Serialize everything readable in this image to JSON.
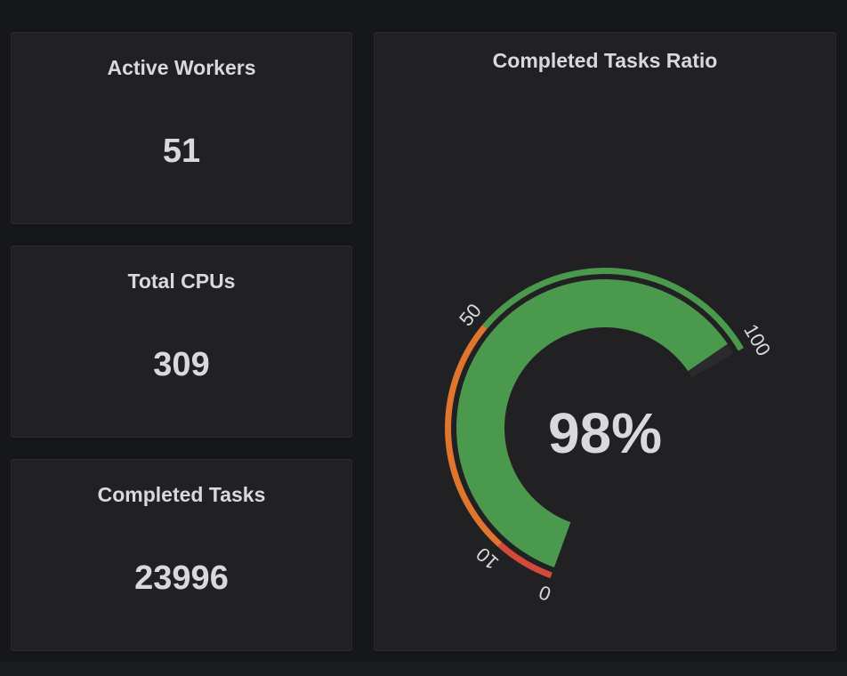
{
  "panels": {
    "active_workers": {
      "title": "Active Workers",
      "value": "51"
    },
    "total_cpus": {
      "title": "Total CPUs",
      "value": "309"
    },
    "completed_tasks": {
      "title": "Completed Tasks",
      "value": "23996"
    }
  },
  "gauge": {
    "title": "Completed Tasks Ratio",
    "value_label": "98%",
    "value": 98,
    "min": 0,
    "max": 100,
    "thresholds": [
      {
        "from": 0,
        "to": 10,
        "color": "#d44a3a"
      },
      {
        "from": 10,
        "to": 50,
        "color": "#e0752d"
      },
      {
        "from": 50,
        "to": 100,
        "color": "#4b994d"
      }
    ],
    "ticks": [
      "0",
      "10",
      "50",
      "100"
    ],
    "fill_color": "#4b994d",
    "track_color": "#2b2b2e"
  }
}
